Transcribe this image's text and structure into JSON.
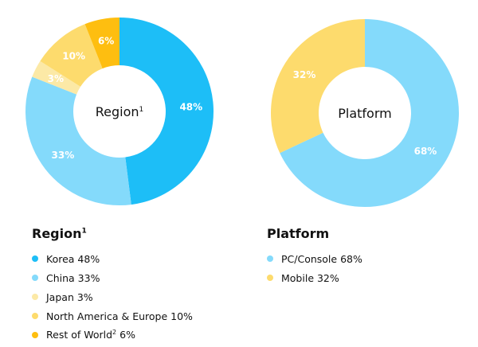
{
  "chart_data": [
    {
      "type": "pie",
      "title": "Region",
      "title_sup": "1",
      "donut": true,
      "categories": [
        "Korea",
        "China",
        "Japan",
        "North America & Europe",
        "Rest of World"
      ],
      "category_sups": [
        "",
        "",
        "",
        "",
        "2"
      ],
      "values": [
        48,
        33,
        3,
        10,
        6
      ],
      "data_labels": [
        "48%",
        "33%",
        "3%",
        "10%",
        "6%"
      ],
      "legend_labels": [
        "Korea 48%",
        "China 33%",
        "Japan 3%",
        "North America & Europe 10%",
        "Rest of World 6%"
      ],
      "colors": [
        "#1DBEF7",
        "#84DAFB",
        "#FCE9A6",
        "#FDDB6D",
        "#FEBE10"
      ]
    },
    {
      "type": "pie",
      "title": "Platform",
      "donut": true,
      "categories": [
        "PC/Console",
        "Mobile"
      ],
      "values": [
        68,
        32
      ],
      "data_labels": [
        "68%",
        "32%"
      ],
      "legend_labels": [
        "PC/Console 68%",
        "Mobile 32%"
      ],
      "colors": [
        "#84DAFB",
        "#FDDB6D"
      ]
    }
  ]
}
